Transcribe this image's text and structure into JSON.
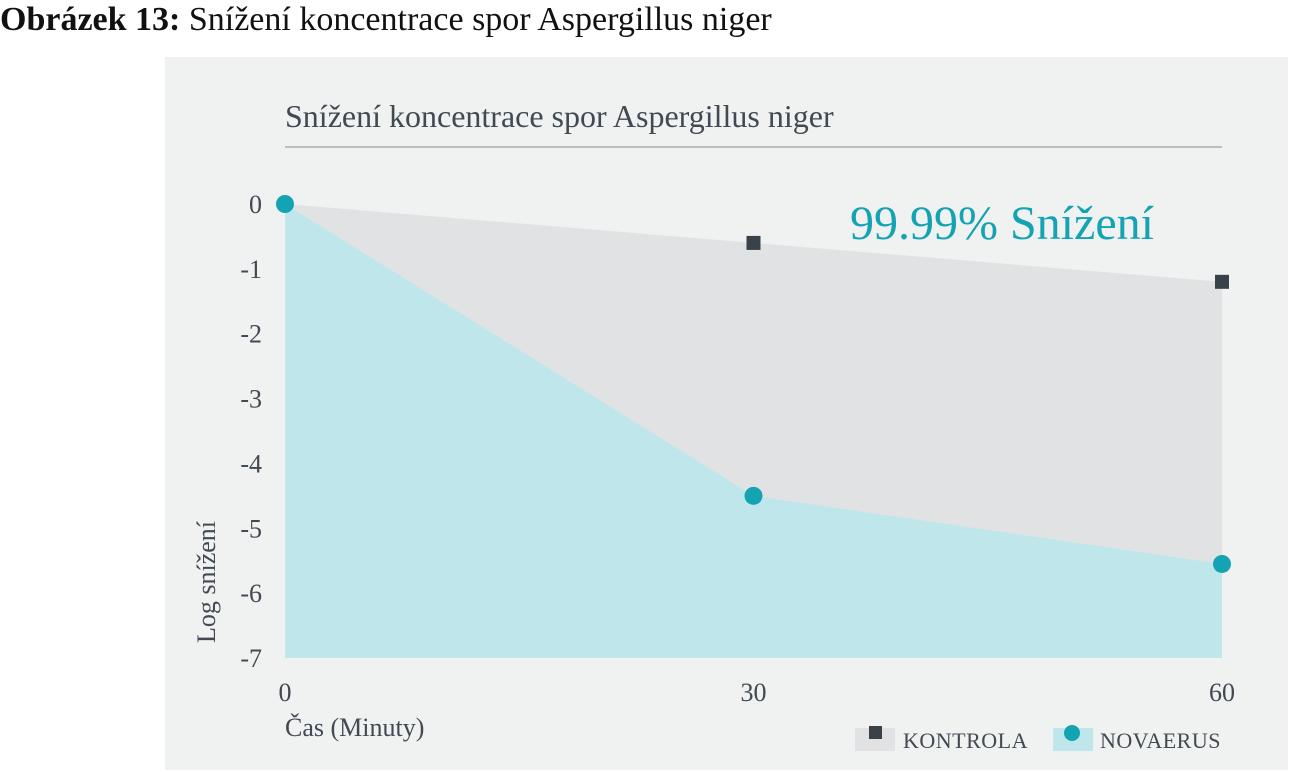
{
  "caption": {
    "label": "Obrázek 13:",
    "text": "Snížení koncentrace spor Aspergillus niger"
  },
  "chart_data": {
    "type": "area",
    "title": "Snížení koncentrace spor Aspergillus niger",
    "xlabel": "Čas (Minuty)",
    "ylabel": "Log snížení",
    "x": [
      0,
      30,
      60
    ],
    "x_ticks": [
      "0",
      "30",
      "60"
    ],
    "xlim": [
      0,
      60
    ],
    "y_ticks": [
      "0",
      "-1",
      "-2",
      "-3",
      "-4",
      "-5",
      "-6",
      "-7"
    ],
    "ylim": [
      -7,
      0
    ],
    "grid": false,
    "legend_position": "bottom-right",
    "annotation": "99.99% Snížení",
    "series": [
      {
        "name": "KONTROLA",
        "values": [
          0,
          -0.6,
          -1.2
        ],
        "marker": "square",
        "color": "#3a4249",
        "fill": "#e1e2e4"
      },
      {
        "name": "NOVAERUS",
        "values": [
          0,
          -4.5,
          -5.55
        ],
        "marker": "circle",
        "color": "#14a3b3",
        "fill": "#bfe7eb"
      }
    ]
  }
}
